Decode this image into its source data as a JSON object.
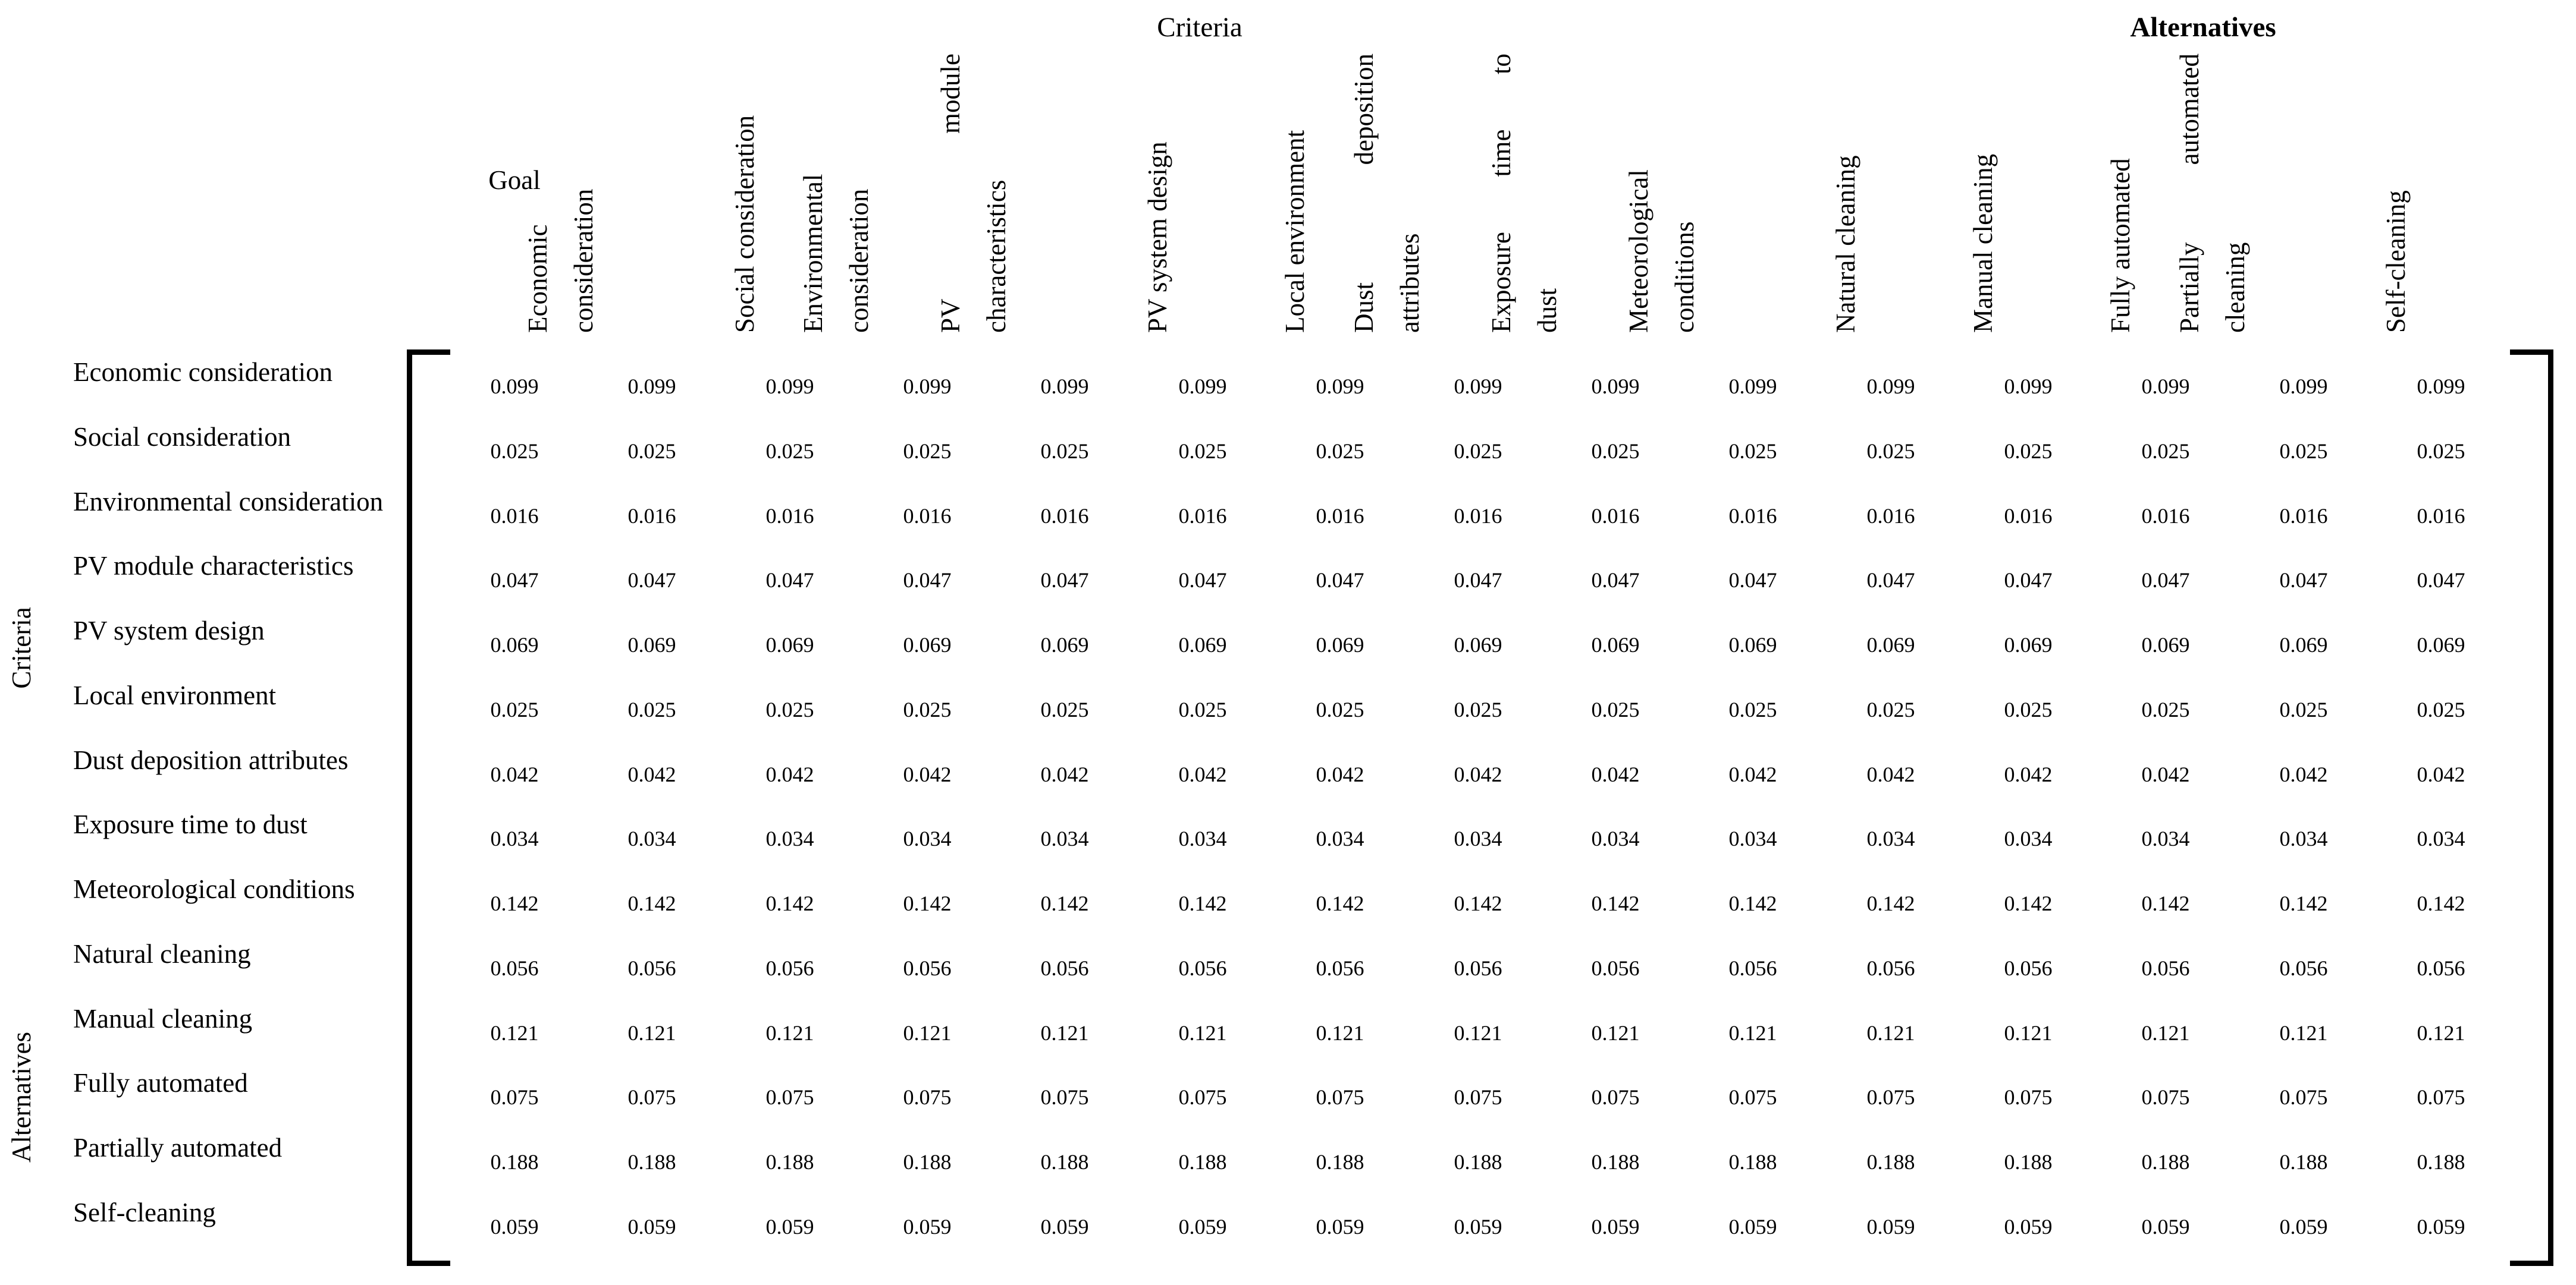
{
  "titles": {
    "criteria_group": "Criteria",
    "alternatives_group": "Alternatives"
  },
  "side_labels": {
    "criteria": "Criteria",
    "alternatives": "Alternatives"
  },
  "matrix": {
    "columns": [
      {
        "id": "goal",
        "orientation": "horizontal",
        "lines": [
          "Goal"
        ]
      },
      {
        "id": "economic-consideration",
        "orientation": "vertical",
        "lines": [
          "Economic",
          "consideration"
        ]
      },
      {
        "id": "social-consideration",
        "orientation": "vertical",
        "lines": [
          "Social consideration"
        ]
      },
      {
        "id": "environmental-consideration",
        "orientation": "vertical",
        "lines": [
          "Environmental",
          "consideration"
        ]
      },
      {
        "id": "pv-module-characteristics",
        "orientation": "vertical",
        "lines": [
          "PV module",
          "characteristics"
        ]
      },
      {
        "id": "pv-system-design",
        "orientation": "vertical",
        "lines": [
          "PV system design"
        ]
      },
      {
        "id": "local-environment",
        "orientation": "vertical",
        "lines": [
          "Local environment"
        ]
      },
      {
        "id": "dust-deposition-attributes",
        "orientation": "vertical",
        "lines": [
          "Dust deposition",
          "attributes"
        ]
      },
      {
        "id": "exposure-time-to-dust",
        "orientation": "vertical",
        "lines": [
          "Exposure time to",
          "dust"
        ]
      },
      {
        "id": "meteorological-conditions",
        "orientation": "vertical",
        "lines": [
          "Meteorological",
          "conditions"
        ]
      },
      {
        "id": "natural-cleaning",
        "orientation": "vertical",
        "lines": [
          "Natural cleaning"
        ]
      },
      {
        "id": "manual-cleaning",
        "orientation": "vertical",
        "lines": [
          "Manual cleaning"
        ]
      },
      {
        "id": "fully-automated",
        "orientation": "vertical",
        "lines": [
          "Fully automated"
        ]
      },
      {
        "id": "partially-automated-cleaning",
        "orientation": "vertical",
        "lines": [
          "Partially automated",
          "cleaning"
        ]
      },
      {
        "id": "self-cleaning",
        "orientation": "vertical",
        "lines": [
          "Self-cleaning"
        ]
      }
    ],
    "columns_count": 15,
    "rows": [
      {
        "label": "Economic consideration",
        "group": "criteria",
        "value": "0.099"
      },
      {
        "label": "Social consideration",
        "group": "criteria",
        "value": "0.025"
      },
      {
        "label": "Environmental consideration",
        "group": "criteria",
        "value": "0.016"
      },
      {
        "label": "PV module characteristics",
        "group": "criteria",
        "value": "0.047"
      },
      {
        "label": "PV system design",
        "group": "criteria",
        "value": "0.069"
      },
      {
        "label": "Local environment",
        "group": "criteria",
        "value": "0.025"
      },
      {
        "label": "Dust deposition attributes",
        "group": "criteria",
        "value": "0.042"
      },
      {
        "label": "Exposure time to dust",
        "group": "criteria",
        "value": "0.034"
      },
      {
        "label": "Meteorological conditions",
        "group": "criteria",
        "value": "0.142"
      },
      {
        "label": "Natural cleaning",
        "group": "alternatives",
        "value": "0.056"
      },
      {
        "label": "Manual cleaning",
        "group": "alternatives",
        "value": "0.121"
      },
      {
        "label": "Fully automated",
        "group": "alternatives",
        "value": "0.075"
      },
      {
        "label": "Partially automated",
        "group": "alternatives",
        "value": "0.188"
      },
      {
        "label": "Self-cleaning",
        "group": "alternatives",
        "value": "0.059"
      }
    ],
    "note_values_uniform_across_columns": true
  }
}
